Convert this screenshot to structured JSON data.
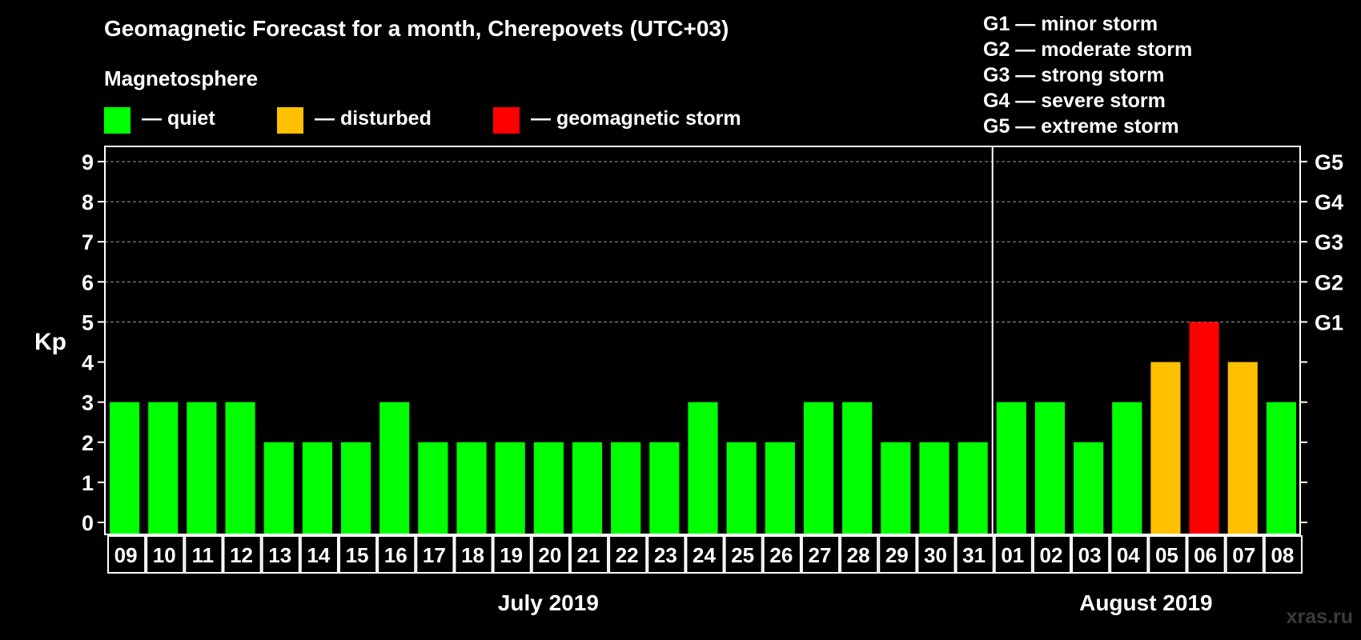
{
  "title": "Geomagnetic Forecast for a month, Cherepovets (UTC+03)",
  "magnetosphere_label": "Magnetosphere",
  "legend": [
    {
      "label": "— quiet",
      "color": "#00ff00"
    },
    {
      "label": "— disturbed",
      "color": "#ffc000"
    },
    {
      "label": "— geomagnetic storm",
      "color": "#ff0000"
    }
  ],
  "g_levels": [
    "G1 — minor storm",
    "G2 — moderate storm",
    "G3 — strong storm",
    "G4 — severe storm",
    "G5 — extreme storm"
  ],
  "watermark": "xras.ru",
  "chart_data": {
    "type": "bar",
    "title": "Geomagnetic Forecast for a month, Cherepovets (UTC+03)",
    "ylabel": "Kp",
    "ylim": [
      0,
      9
    ],
    "yticks": [
      "0",
      "1",
      "2",
      "3",
      "4",
      "5",
      "6",
      "7",
      "8",
      "9"
    ],
    "right_axis": [
      {
        "kp": 5,
        "label": "G1"
      },
      {
        "kp": 6,
        "label": "G2"
      },
      {
        "kp": 7,
        "label": "G3"
      },
      {
        "kp": 8,
        "label": "G4"
      },
      {
        "kp": 9,
        "label": "G5"
      }
    ],
    "categories": [
      "09",
      "10",
      "11",
      "12",
      "13",
      "14",
      "15",
      "16",
      "17",
      "18",
      "19",
      "20",
      "21",
      "22",
      "23",
      "24",
      "25",
      "26",
      "27",
      "28",
      "29",
      "30",
      "31",
      "01",
      "02",
      "03",
      "04",
      "05",
      "06",
      "07",
      "08"
    ],
    "values": [
      3,
      3,
      3,
      3,
      2,
      2,
      2,
      3,
      2,
      2,
      2,
      2,
      2,
      2,
      2,
      3,
      2,
      2,
      3,
      3,
      2,
      2,
      2,
      3,
      3,
      2,
      3,
      4,
      5,
      4,
      3
    ],
    "status": [
      "quiet",
      "quiet",
      "quiet",
      "quiet",
      "quiet",
      "quiet",
      "quiet",
      "quiet",
      "quiet",
      "quiet",
      "quiet",
      "quiet",
      "quiet",
      "quiet",
      "quiet",
      "quiet",
      "quiet",
      "quiet",
      "quiet",
      "quiet",
      "quiet",
      "quiet",
      "quiet",
      "quiet",
      "quiet",
      "quiet",
      "quiet",
      "disturbed",
      "geomagnetic storm",
      "disturbed",
      "quiet"
    ],
    "status_colors": {
      "quiet": "#00ff00",
      "disturbed": "#ffc000",
      "geomagnetic storm": "#ff0000"
    },
    "months": [
      {
        "label": "July 2019",
        "first_index": 0,
        "last_index": 22
      },
      {
        "label": "August 2019",
        "first_index": 23,
        "last_index": 30
      }
    ],
    "grid": true
  }
}
